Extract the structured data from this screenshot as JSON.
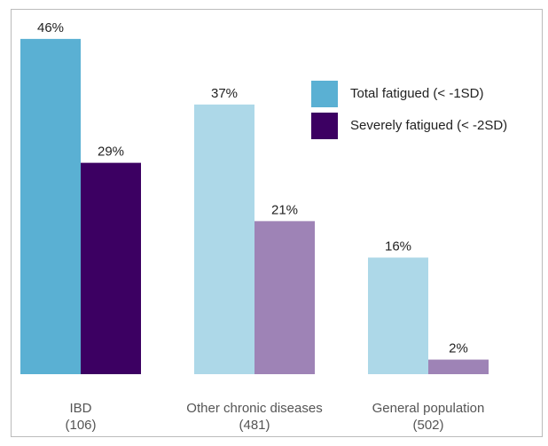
{
  "chart_data": {
    "type": "bar",
    "categories": [
      [
        "IBD",
        "(106)"
      ],
      [
        "Other chronic diseases",
        "(481)"
      ],
      [
        "General population",
        "(502)"
      ]
    ],
    "series": [
      {
        "name": "Total fatigued (< -1SD)",
        "color": "#5ab0d3",
        "colors": [
          "#5ab0d3",
          "#add8e8",
          "#add8e8"
        ],
        "values": [
          46,
          37,
          16
        ],
        "value_labels": [
          "46%",
          "37%",
          "16%"
        ]
      },
      {
        "name": "Severely fatigued (< -2SD)",
        "color": "#3c0062",
        "colors": [
          "#3c0062",
          "#9e83b6",
          "#9e83b6"
        ],
        "values": [
          29,
          21,
          2
        ],
        "value_labels": [
          "29%",
          "21%",
          "2%"
        ]
      }
    ],
    "legend": "upper right"
  }
}
